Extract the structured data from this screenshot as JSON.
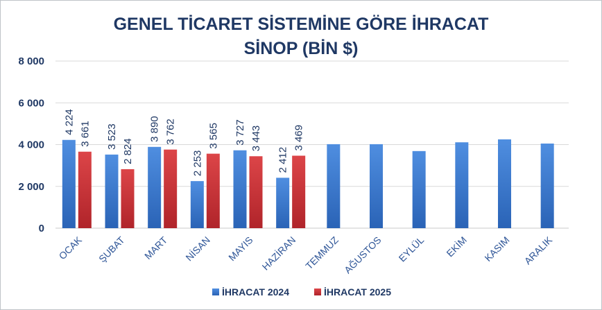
{
  "chart_data": {
    "type": "bar",
    "title": "GENEL TİCARET SİSTEMİNE GÖRE İHRACAT",
    "subtitle": "SİNOP (BİN $)",
    "categories": [
      "OCAK",
      "ŞUBAT",
      "MART",
      "NİSAN",
      "MAYIS",
      "HAZİRAN",
      "TEMMUZ",
      "AĞUSTOS",
      "EYLÜL",
      "EKİM",
      "KASIM",
      "ARALIK"
    ],
    "series": [
      {
        "name": "İHRACAT 2024",
        "color": "#2e6fc4",
        "values": [
          4224,
          3523,
          3890,
          2253,
          3727,
          2412,
          4020,
          4020,
          3690,
          4110,
          4250,
          4050
        ],
        "labels": [
          "4 224",
          "3 523",
          "3 890",
          "2 253",
          "3 727",
          "2 412",
          null,
          null,
          null,
          null,
          null,
          null
        ]
      },
      {
        "name": "İHRACAT 2025",
        "color": "#c0282d",
        "values": [
          3661,
          2824,
          3762,
          3565,
          3443,
          3469,
          null,
          null,
          null,
          null,
          null,
          null
        ],
        "labels": [
          "3 661",
          "2 824",
          "3 762",
          "3 565",
          "3 443",
          "3 469",
          null,
          null,
          null,
          null,
          null,
          null
        ]
      }
    ],
    "ylim": [
      0,
      8000
    ],
    "yticks": [
      0,
      2000,
      4000,
      6000,
      8000
    ],
    "ytick_labels": [
      "0",
      "2 000",
      "4 000",
      "6 000",
      "8 000"
    ],
    "grid": true,
    "legend_position": "bottom"
  }
}
